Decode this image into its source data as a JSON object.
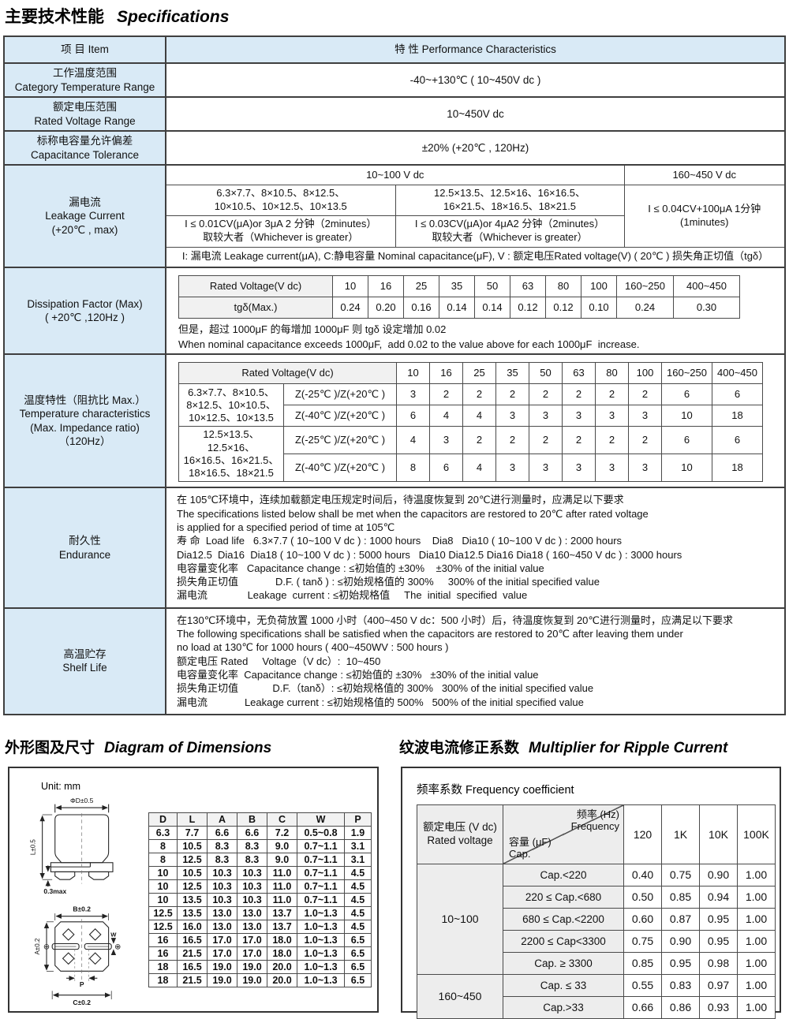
{
  "page_title": {
    "cn": "主要技术性能",
    "en": "Specifications"
  },
  "colors": {
    "label_bg": "#d9eaf6",
    "subheader_bg": "#ededed",
    "border_dark": "#3f3f3f",
    "border_light": "#4a4a4a"
  },
  "spec": {
    "header_item": "项 目 Item",
    "header_char": "特 性 Performance Characteristics",
    "temp_range": {
      "cn": "工作温度范围",
      "en": "Category Temperature Range",
      "value": "-40~+130℃ ( 10~450V dc )"
    },
    "voltage_range": {
      "cn": "额定电压范围",
      "en": "Rated Voltage Range",
      "value": "10~450V dc"
    },
    "tolerance": {
      "cn": "标称电容量允许偏差",
      "en": "Capacitance Tolerance",
      "value": "±20%   (+20℃ , 120Hz)"
    },
    "leakage": {
      "cn": "漏电流",
      "en": "Leakage Current",
      "cond": "(+20℃ , max)",
      "col_low": "10~100 V dc",
      "col_high": "160~450 V dc",
      "sizes_small": "6.3×7.7、8×10.5、8×12.5、\n10×10.5、10×12.5、10×13.5",
      "sizes_large": "12.5×13.5、12.5×16、16×16.5、\n16×21.5、18×16.5、18×21.5",
      "formula_small": "I ≤ 0.01CV(μA)or 3μA 2 分钟（2minutes）\n取较大者（Whichever is greater）",
      "formula_large": "I ≤ 0.03CV(μA)or 4μA2 分钟（2minutes）\n取较大者（Whichever is greater）",
      "formula_high": "I ≤ 0.04CV+100μA  1分钟\n(1minutes)",
      "note": "I: 漏电流 Leakage current(μA), C:静电容量 Nominal capacitance(μF), V : 额定电压Rated voltage(V) ( 20℃ ) 损失角正切值（tgδ）"
    },
    "dissipation": {
      "label1": "Dissipation Factor (Max)",
      "label2": "( +20℃ ,120Hz )",
      "header_label": "Rated Voltage(V dc)",
      "voltages": [
        "10",
        "16",
        "25",
        "35",
        "50",
        "63",
        "80",
        "100",
        "160~250",
        "400~450"
      ],
      "row_label": "tgδ(Max.)",
      "values": [
        "0.24",
        "0.20",
        "0.16",
        "0.14",
        "0.14",
        "0.12",
        "0.12",
        "0.10",
        "0.24",
        "0.30"
      ],
      "note_cn": "但是，超过 1000μF 的每增加 1000μF 则 tgδ 设定增加 0.02",
      "note_en": "When nominal capacitance exceeds 1000μF,  add 0.02 to the value above for each 1000μF  increase."
    },
    "temperature": {
      "cn": "温度特性（阻抗比 Max.）",
      "en1": "Temperature characteristics",
      "en2": "(Max. Impedance ratio)",
      "en3": "（120Hz）",
      "header_label": "Rated Voltage(V dc)",
      "voltages": [
        "10",
        "16",
        "25",
        "35",
        "50",
        "63",
        "80",
        "100",
        "160~250",
        "400~450"
      ],
      "groups": [
        {
          "sizes": "6.3×7.7、8×10.5、\n8×12.5、10×10.5、\n10×12.5、10×13.5",
          "r25_label": "Z(-25℃ )/Z(+20℃ )",
          "r25": [
            "3",
            "2",
            "2",
            "2",
            "2",
            "2",
            "2",
            "2",
            "6",
            "6"
          ],
          "r40_label": "Z(-40℃ )/Z(+20℃ )",
          "r40": [
            "6",
            "4",
            "4",
            "3",
            "3",
            "3",
            "3",
            "3",
            "10",
            "18"
          ]
        },
        {
          "sizes": "12.5×13.5、12.5×16、\n16×16.5、16×21.5、\n18×16.5、18×21.5",
          "r25_label": "Z(-25℃ )/Z(+20℃ )",
          "r25": [
            "4",
            "3",
            "2",
            "2",
            "2",
            "2",
            "2",
            "2",
            "6",
            "6"
          ],
          "r40_label": "Z(-40℃ )/Z(+20℃ )",
          "r40": [
            "8",
            "6",
            "4",
            "3",
            "3",
            "3",
            "3",
            "3",
            "10",
            "18"
          ]
        }
      ]
    },
    "endurance": {
      "cn": "耐久性",
      "en": "Endurance",
      "lines": [
        "在 105℃环境中，连续加载额定电压规定时间后，待温度恢复到 20℃进行测量时，应满足以下要求",
        "The specifications listed below shall be met when the capacitors are restored to 20℃ after rated voltage",
        "is applied for a specified period of time at 105℃",
        "寿 命  Load life   6.3×7.7 ( 10~100 V dc ) : 1000 hours    Dia8   Dia10 ( 10~100 V dc ) : 2000 hours",
        "Dia12.5  Dia16  Dia18 ( 10~100 V dc ) : 5000 hours   Dia10 Dia12.5 Dia16 Dia18 ( 160~450 V dc ) : 3000 hours",
        "电容量变化率   Capacitance change : ≤初始值的 ±30%    ±30% of the initial value",
        "损失角正切值             D.F. ( tanδ ) : ≤初始规格值的 300%     300% of the initial specified value",
        "漏电流              Leakage  current : ≤初始规格值     The  initial  specified  value"
      ]
    },
    "shelf": {
      "cn": "高温贮存",
      "en": "Shelf Life",
      "lines": [
        "在130℃环境中，无负荷放置 1000 小时（400~450 V dc：500 小时）后，待温度恢复到 20℃进行测量时，应满足以下要求",
        "The following specifications shall be satisfied when the capacitors are restored to 20℃ after leaving them under",
        "no load at 130℃ for 1000 hours ( 400~450WV : 500 hours )",
        "额定电压 Rated     Voltage（V dc）:  10~450",
        "电容量变化率  Capacitance change : ≤初始值的 ±30%   ±30% of the initial value",
        "损失角正切值            D.F.（tanδ）: ≤初始规格值的 300%   300% of the initial specified value",
        "漏电流             Leakage current : ≤初始规格值的 500%   500% of the initial specified value"
      ]
    }
  },
  "dimensions": {
    "title_cn": "外形图及尺寸",
    "title_en": "Diagram of Dimensions",
    "unit": "Unit: mm",
    "labels": {
      "d": "ΦD±0.5",
      "l": "L±0.5",
      "gap": "0.3max",
      "b": "B±0.2",
      "a": "A±0.2",
      "w": "W",
      "p": "P",
      "c": "C±0.2",
      "minus": "⊖",
      "plus": "⊕"
    },
    "columns": [
      "D",
      "L",
      "A",
      "B",
      "C",
      "W",
      "P"
    ],
    "rows": [
      [
        "6.3",
        "7.7",
        "6.6",
        "6.6",
        "7.2",
        "0.5~0.8",
        "1.9"
      ],
      [
        "8",
        "10.5",
        "8.3",
        "8.3",
        "9.0",
        "0.7~1.1",
        "3.1"
      ],
      [
        "8",
        "12.5",
        "8.3",
        "8.3",
        "9.0",
        "0.7~1.1",
        "3.1"
      ],
      [
        "10",
        "10.5",
        "10.3",
        "10.3",
        "11.0",
        "0.7~1.1",
        "4.5"
      ],
      [
        "10",
        "12.5",
        "10.3",
        "10.3",
        "11.0",
        "0.7~1.1",
        "4.5"
      ],
      [
        "10",
        "13.5",
        "10.3",
        "10.3",
        "11.0",
        "0.7~1.1",
        "4.5"
      ],
      [
        "12.5",
        "13.5",
        "13.0",
        "13.0",
        "13.7",
        "1.0~1.3",
        "4.5"
      ],
      [
        "12.5",
        "16.0",
        "13.0",
        "13.0",
        "13.7",
        "1.0~1.3",
        "4.5"
      ],
      [
        "16",
        "16.5",
        "17.0",
        "17.0",
        "18.0",
        "1.0~1.3",
        "6.5"
      ],
      [
        "16",
        "21.5",
        "17.0",
        "17.0",
        "18.0",
        "1.0~1.3",
        "6.5"
      ],
      [
        "18",
        "16.5",
        "19.0",
        "19.0",
        "20.0",
        "1.0~1.3",
        "6.5"
      ],
      [
        "18",
        "21.5",
        "19.0",
        "19.0",
        "20.0",
        "1.0~1.3",
        "6.5"
      ]
    ]
  },
  "ripple": {
    "title_cn": "纹波电流修正系数",
    "title_en": "Multiplier for Ripple Current",
    "subtitle": "频率系数 Frequency coefficient",
    "rated_cn": "额定电压 (V dc)",
    "rated_en": "Rated voltage",
    "freq_cn": "频率 (Hz)",
    "freq_en": "Frequency",
    "cap_cn": "容量 (μF)",
    "cap_en": "Cap.",
    "freq_cols": [
      "120",
      "1K",
      "10K",
      "100K"
    ],
    "groups": [
      {
        "voltage": "10~100",
        "rows": [
          {
            "range": "Cap.<220",
            "values": [
              "0.40",
              "0.75",
              "0.90",
              "1.00"
            ]
          },
          {
            "range": "220 ≤ Cap.<680",
            "values": [
              "0.50",
              "0.85",
              "0.94",
              "1.00"
            ]
          },
          {
            "range": "680 ≤ Cap.<2200",
            "values": [
              "0.60",
              "0.87",
              "0.95",
              "1.00"
            ]
          },
          {
            "range": "2200 ≤ Cap<3300",
            "values": [
              "0.75",
              "0.90",
              "0.95",
              "1.00"
            ]
          },
          {
            "range": "Cap. ≥ 3300",
            "values": [
              "0.85",
              "0.95",
              "0.98",
              "1.00"
            ]
          }
        ]
      },
      {
        "voltage": "160~450",
        "rows": [
          {
            "range": "Cap. ≤ 33",
            "values": [
              "0.55",
              "0.83",
              "0.97",
              "1.00"
            ]
          },
          {
            "range": "Cap.>33",
            "values": [
              "0.66",
              "0.86",
              "0.93",
              "1.00"
            ]
          }
        ]
      }
    ]
  }
}
